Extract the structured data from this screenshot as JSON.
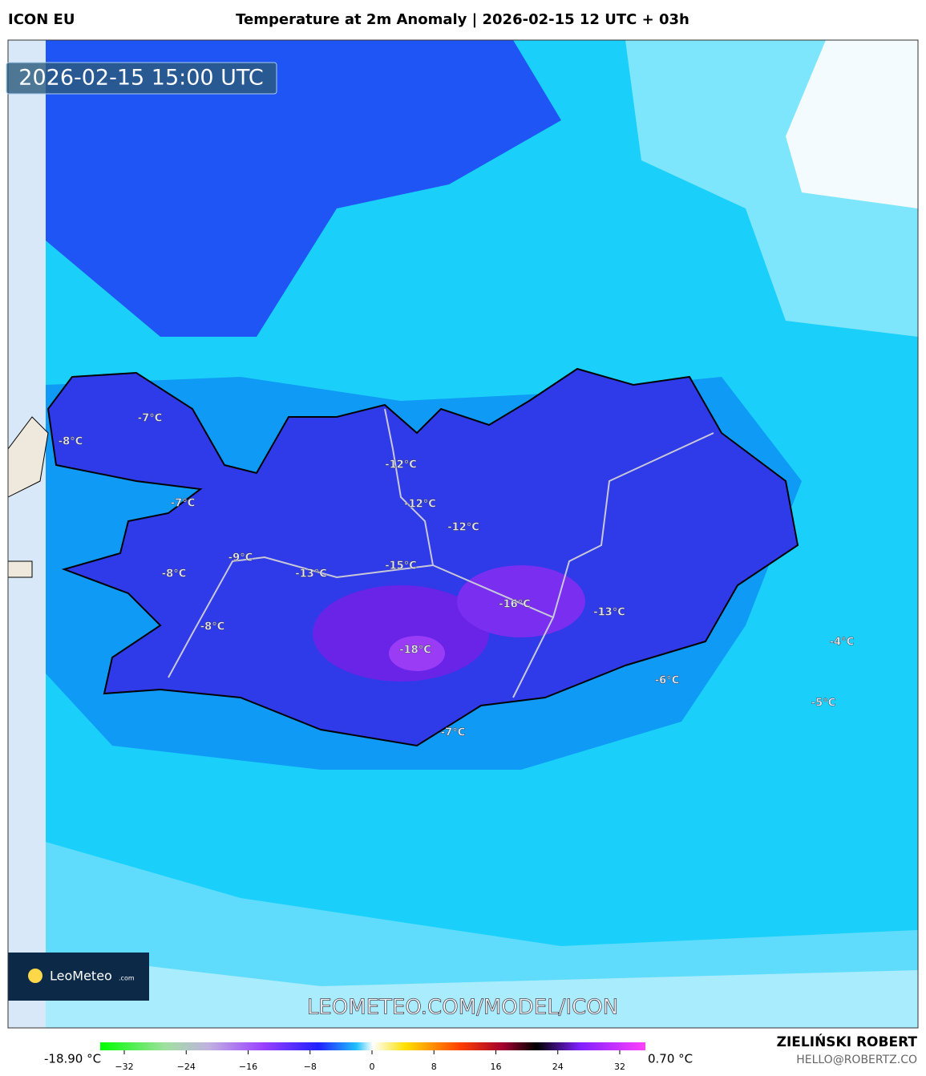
{
  "header": {
    "model": "ICON EU",
    "title": "Temperature at 2m Anomaly | 2026-02-15 12 UTC + 03h"
  },
  "map": {
    "timestamp": "2026-02-15 15:00 UTC",
    "watermark": "LEOMETEO.COM/MODEL/ICON",
    "logo": "LeoMeteo",
    "logo_suffix": ".com",
    "labels": [
      "-7°C",
      "-8°C",
      "-7°C",
      "-12°C",
      "-12°C",
      "-12°C",
      "-9°C",
      "-8°C",
      "-13°C",
      "-15°C",
      "-16°C",
      "-13°C",
      "-8°C",
      "-18°C",
      "-4°C",
      "-6°C",
      "-5°C",
      "-7°C"
    ]
  },
  "colorbar": {
    "min_label": "-18.90 °C",
    "max_label": "0.70 °C",
    "ticks": [
      "−32",
      "−24",
      "−16",
      "−8",
      "0",
      "8",
      "16",
      "24",
      "32"
    ]
  },
  "footer": {
    "author": "ZIELIŃSKI ROBERT",
    "email": "HELLO@ROBERTZ.CO"
  }
}
